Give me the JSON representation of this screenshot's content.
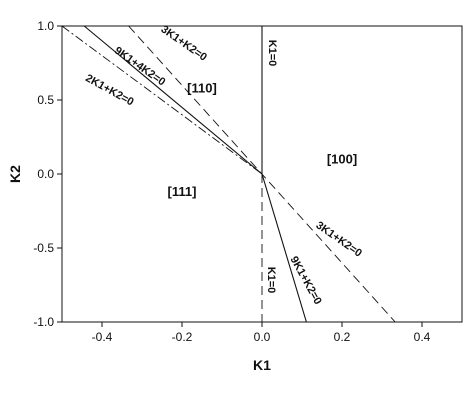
{
  "chart_data": {
    "type": "line",
    "title": "",
    "xlabel": "K1",
    "ylabel": "K2",
    "xlim": [
      -0.5,
      0.5
    ],
    "ylim": [
      -1.0,
      1.0
    ],
    "x_ticks": [
      -0.4,
      -0.2,
      0.0,
      0.2,
      0.4
    ],
    "x_tick_labels": [
      "-0.4",
      "-0.2",
      "0.0",
      "0.2",
      "0.4"
    ],
    "y_ticks": [
      -1.0,
      -0.5,
      0.0,
      0.5,
      1.0
    ],
    "y_tick_labels": [
      "-1.0",
      "-0.5",
      "0.0",
      "0.5",
      "1.0"
    ],
    "grid": false,
    "series": [
      {
        "name": "3K1+K2=0",
        "style": "dashed",
        "labels": [
          "3K1+K2=0",
          "3K1+K2=0"
        ],
        "x": [
          -0.5,
          0.333
        ],
        "y": [
          1.5,
          -1.0
        ]
      },
      {
        "name": "9K1+4K2=0",
        "style": "solid",
        "labels": [
          "9K1+4K2=0"
        ],
        "x": [
          -0.5,
          0.0
        ],
        "y": [
          1.125,
          0.0
        ]
      },
      {
        "name": "2K1+K2=0",
        "style": "dashdot",
        "labels": [
          "2K1+K2=0"
        ],
        "x": [
          -0.5,
          0.0
        ],
        "y": [
          1.0,
          0.0
        ]
      },
      {
        "name": "K1=0",
        "style": "solid",
        "labels": [
          "K1=0"
        ],
        "x": [
          0.0,
          0.0
        ],
        "y": [
          0.0,
          1.0
        ]
      },
      {
        "name": "K1=0",
        "style": "dashed",
        "labels": [
          "K1=0"
        ],
        "x": [
          0.0,
          0.0
        ],
        "y": [
          0.0,
          -1.0
        ]
      },
      {
        "name": "9K1+K2=0",
        "style": "solid",
        "labels": [
          "9K1+K2=0"
        ],
        "x": [
          0.0,
          0.111
        ],
        "y": [
          0.0,
          -1.0
        ]
      }
    ],
    "regions": [
      {
        "label": "[110]",
        "x": -0.15,
        "y": 0.55
      },
      {
        "label": "[100]",
        "x": 0.2,
        "y": 0.07
      },
      {
        "label": "[111]",
        "x": -0.2,
        "y": -0.15
      }
    ]
  }
}
